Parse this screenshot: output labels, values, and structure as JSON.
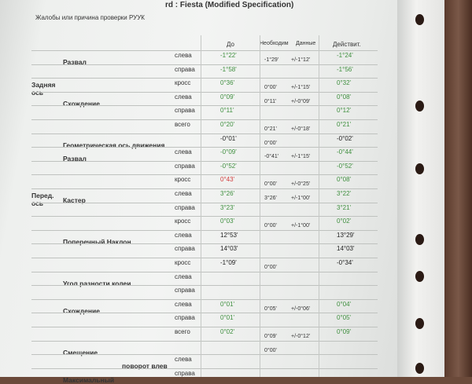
{
  "title": "rd : Fiesta (Modified Specification)",
  "complaint_label": "Жалобы или причина проверки РУУК",
  "headers": {
    "before": "До",
    "spec": "Необходим",
    "tol": "Данные",
    "actual": "Действит."
  },
  "colors": {
    "green": "#3f8f3f",
    "red": "#d23c3c",
    "black": "#222222"
  },
  "rows": [
    {
      "group": "",
      "name": "Развал",
      "side": "слева",
      "before": "-1°22'",
      "bc": "green",
      "spec": "-1°29'",
      "tol": "+/-1°12'",
      "actual": "-1°24'",
      "ac": "green"
    },
    {
      "group": "",
      "name": "",
      "side": "справа",
      "before": "-1°58'",
      "bc": "green",
      "spec": "",
      "tol": "",
      "actual": "-1°56'",
      "ac": "green"
    },
    {
      "group": "Задняя ось",
      "name": "",
      "side": "кросс",
      "before": "0°36'",
      "bc": "green",
      "spec": "0°00'",
      "tol": "+/-1°15'",
      "actual": "0°32'",
      "ac": "green"
    },
    {
      "group": "",
      "name": "Схождение",
      "side": "слева",
      "before": "0°09'",
      "bc": "green",
      "spec": "0°11'",
      "tol": "+/-0°09'",
      "actual": "0°08'",
      "ac": "green"
    },
    {
      "group": "",
      "name": "",
      "side": "справа",
      "before": "0°11'",
      "bc": "green",
      "spec": "",
      "tol": "",
      "actual": "0°12'",
      "ac": "green"
    },
    {
      "group": "",
      "name": "",
      "side": "всего",
      "before": "0°20'",
      "bc": "green",
      "spec": "0°21'",
      "tol": "+/-0°18'",
      "actual": "0°21'",
      "ac": "green"
    },
    {
      "group": "",
      "name": "Геометрическая ось движения",
      "side": "",
      "before": "-0°01'",
      "bc": "black",
      "spec": "0°00'",
      "tol": "",
      "actual": "-0°02'",
      "ac": "black"
    },
    {
      "group": "",
      "name": "Развал",
      "side": "слева",
      "before": "-0°09'",
      "bc": "green",
      "spec": "-0°41'",
      "tol": "+/-1°15'",
      "actual": "-0°44'",
      "ac": "green"
    },
    {
      "group": "",
      "name": "",
      "side": "справа",
      "before": "-0°52'",
      "bc": "green",
      "spec": "",
      "tol": "",
      "actual": "-0°52'",
      "ac": "green"
    },
    {
      "group": "",
      "name": "",
      "side": "кросс",
      "before": "0°43'",
      "bc": "red",
      "spec": "0°00'",
      "tol": "+/-0°25'",
      "actual": "0°08'",
      "ac": "green"
    },
    {
      "group": "Перед. ось",
      "name": "Кастер",
      "side": "слева",
      "before": "3°26'",
      "bc": "green",
      "spec": "3°26'",
      "tol": "+/-1°00'",
      "actual": "3°22'",
      "ac": "green"
    },
    {
      "group": "",
      "name": "",
      "side": "справа",
      "before": "3°23'",
      "bc": "green",
      "spec": "",
      "tol": "",
      "actual": "3°21'",
      "ac": "green"
    },
    {
      "group": "",
      "name": "",
      "side": "кросс",
      "before": "0°03'",
      "bc": "green",
      "spec": "0°00'",
      "tol": "+/-1°00'",
      "actual": "0°02'",
      "ac": "green"
    },
    {
      "group": "",
      "name": "Поперечный Наклон",
      "side": "слева",
      "before": "12°53'",
      "bc": "black",
      "spec": "",
      "tol": "",
      "actual": "13°29'",
      "ac": "black"
    },
    {
      "group": "",
      "name": "",
      "side": "справа",
      "before": "14°03'",
      "bc": "black",
      "spec": "",
      "tol": "",
      "actual": "14°03'",
      "ac": "black"
    },
    {
      "group": "",
      "name": "",
      "side": "кросс",
      "before": "-1°09'",
      "bc": "black",
      "spec": "0°00'",
      "tol": "",
      "actual": "-0°34'",
      "ac": "black"
    },
    {
      "group": "",
      "name": "Угол разности колеи",
      "side": "слева",
      "before": "",
      "bc": "black",
      "spec": "",
      "tol": "",
      "actual": "",
      "ac": "black"
    },
    {
      "group": "",
      "name": "",
      "side": "справа",
      "before": "",
      "bc": "black",
      "spec": "",
      "tol": "",
      "actual": "",
      "ac": "black"
    },
    {
      "group": "",
      "name": "Схождение",
      "side": "слева",
      "before": "0°01'",
      "bc": "green",
      "spec": "0°05'",
      "tol": "+/-0°06'",
      "actual": "0°04'",
      "ac": "green"
    },
    {
      "group": "",
      "name": "",
      "side": "справа",
      "before": "0°01'",
      "bc": "green",
      "spec": "",
      "tol": "",
      "actual": "0°05'",
      "ac": "green"
    },
    {
      "group": "",
      "name": "",
      "side": "всего",
      "before": "0°02'",
      "bc": "green",
      "spec": "0°09'",
      "tol": "+/-0°12'",
      "actual": "0°09'",
      "ac": "green"
    },
    {
      "group": "",
      "name": "Смещение",
      "side": "",
      "before": "",
      "bc": "black",
      "spec": "0°00'",
      "tol": "",
      "actual": "",
      "ac": "black"
    },
    {
      "group": "",
      "name": "",
      "sub": "поворот влев",
      "side": "слева",
      "before": "",
      "bc": "black",
      "spec": "",
      "tol": "",
      "actual": "",
      "ac": "black"
    },
    {
      "group": "",
      "name": "Максимальный",
      "side": "справа",
      "before": "",
      "bc": "black",
      "spec": "",
      "tol": "",
      "actual": "",
      "ac": "black"
    }
  ]
}
